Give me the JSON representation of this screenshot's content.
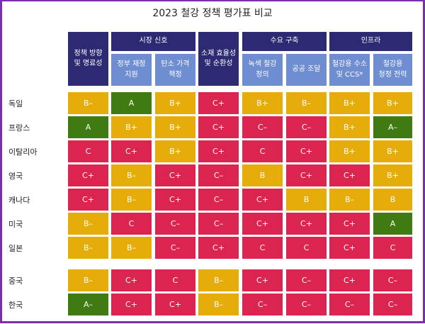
{
  "title": "2023 철강 정책 평가표 비교",
  "colors": {
    "A": "#3f7a12",
    "B": "#e5ac0a",
    "C": "#dc2450",
    "header_dark": "#2b2a73",
    "header_light": "#6f8ed2",
    "border": "#7b2fb0"
  },
  "header": {
    "groups": [
      "시장 신호",
      "수요 구축",
      "인프라"
    ],
    "columns": [
      "정책 방향\n및 명료성",
      "정부 재정\n지원",
      "탄소 가격\n책정",
      "소재 효율성\n및 순환성",
      "녹색 철강\n정의",
      "공공 조달",
      "철강용 수소\n및 CCS*",
      "철강용\n청정 전력"
    ]
  },
  "chart_data": {
    "type": "table",
    "title": "2023 철강 정책 평가표 비교",
    "columns": [
      "정책 방향 및 명료성",
      "정부 재정 지원",
      "탄소 가격 책정",
      "소재 효율성 및 순환성",
      "녹색 철강 정의",
      "공공 조달",
      "철강용 수소 및 CCS*",
      "철강용 청정 전력"
    ],
    "rows": [
      {
        "country": "독일",
        "grades": [
          "B–",
          "A",
          "B+",
          "C+",
          "B+",
          "B–",
          "B+",
          "B+"
        ]
      },
      {
        "country": "프랑스",
        "grades": [
          "A",
          "B+",
          "B+",
          "C+",
          "C–",
          "C–",
          "B+",
          "A–"
        ]
      },
      {
        "country": "이탈리아",
        "grades": [
          "C",
          "C+",
          "B+",
          "C+",
          "C",
          "C+",
          "B+",
          "B+"
        ]
      },
      {
        "country": "영국",
        "grades": [
          "C+",
          "B–",
          "C+",
          "C–",
          "B",
          "C+",
          "C+",
          "B+"
        ]
      },
      {
        "country": "캐나다",
        "grades": [
          "C+",
          "B–",
          "C+",
          "C–",
          "C+",
          "B",
          "B–",
          "B"
        ]
      },
      {
        "country": "미국",
        "grades": [
          "B–",
          "C",
          "C–",
          "C–",
          "C+",
          "C+",
          "C+",
          "A"
        ]
      },
      {
        "country": "일본",
        "grades": [
          "B–",
          "B–",
          "C–",
          "C+",
          "C",
          "C",
          "C+",
          "C"
        ]
      },
      {
        "country": "중국",
        "grades": [
          "B–",
          "C+",
          "C",
          "B–",
          "C+",
          "C–",
          "C+",
          "C–"
        ]
      },
      {
        "country": "한국",
        "grades": [
          "A–",
          "C+",
          "C+",
          "B–",
          "C–",
          "C–",
          "C–",
          "C–"
        ]
      }
    ]
  }
}
